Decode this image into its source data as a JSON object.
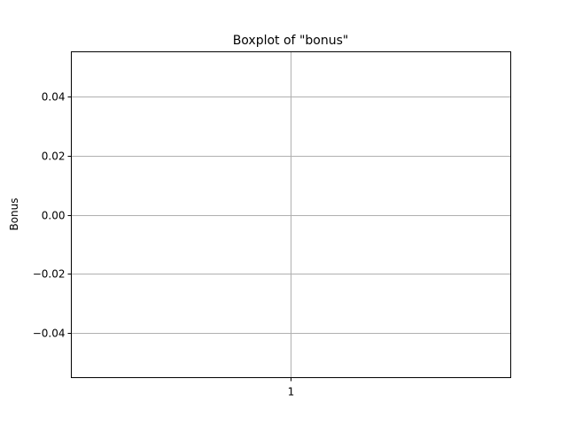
{
  "chart_data": {
    "type": "box",
    "title": "Boxplot of \"bonus\"",
    "xlabel": "",
    "ylabel": "Bonus",
    "categories": [
      "1"
    ],
    "series": [
      {
        "values": []
      }
    ],
    "ylim": [
      -0.055,
      0.055
    ],
    "yticks": [
      -0.04,
      -0.02,
      0.0,
      0.02,
      0.04
    ],
    "ytick_labels": [
      "−0.04",
      "−0.02",
      "0.00",
      "0.02",
      "0.04"
    ],
    "xtick_labels": [
      "1"
    ],
    "grid": true,
    "legend": "none"
  },
  "colors": {
    "grid": "#b0b0b0",
    "axes": "#000000",
    "background": "#ffffff"
  }
}
